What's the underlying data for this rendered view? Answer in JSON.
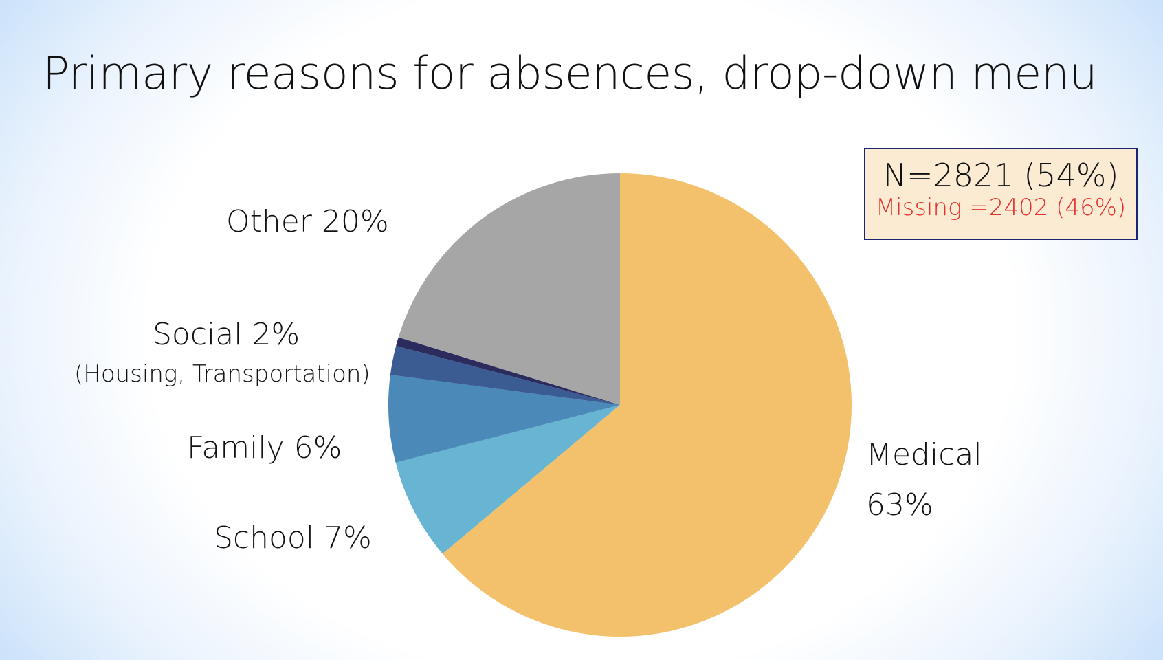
{
  "title": "Primary reasons for absences, drop-down menu",
  "sample_box": {
    "n_text": "N=2821 (54%)",
    "missing_text": "Missing =2402 (46%)"
  },
  "labels": {
    "other": "Other 20%",
    "social": "Social 2%",
    "social_sub": "(Housing, Transportation)",
    "family": "Family 6%",
    "school": "School 7%",
    "medical_line1": "Medical",
    "medical_line2": "63%"
  },
  "chart_data": {
    "type": "pie",
    "title": "Primary reasons for absences, drop-down menu",
    "slices": [
      {
        "name": "Medical",
        "value": 63,
        "color": "#f3c16b"
      },
      {
        "name": "School",
        "value": 7,
        "color": "#67b4d3"
      },
      {
        "name": "Family",
        "value": 6,
        "color": "#4a89b8"
      },
      {
        "name": "Social",
        "value": 2,
        "color": "#3b5b93"
      },
      {
        "name": "",
        "value": 0.6,
        "color": "#2c2b5e"
      },
      {
        "name": "Other",
        "value": 20,
        "color": "#a6a6a6"
      }
    ],
    "start": "12 o'clock, clockwise"
  }
}
